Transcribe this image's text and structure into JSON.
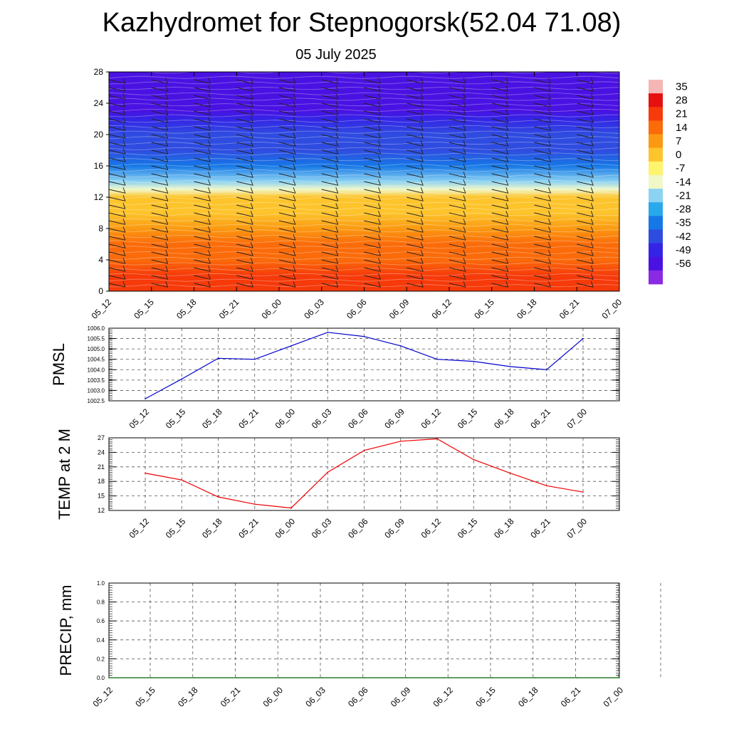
{
  "title": "Kazhydromet for Stepnogorsk(52.04 71.08)",
  "subtitle": "05 July 2025",
  "chart_data": [
    {
      "type": "heatmap",
      "title": "",
      "y_ticks": [
        "0",
        "4",
        "8",
        "12",
        "16",
        "20",
        "24",
        "28"
      ],
      "ylim": [
        0,
        28
      ],
      "x": [
        "05_12",
        "05_15",
        "05_18",
        "05_21",
        "06_00",
        "06_03",
        "06_06",
        "06_09",
        "06_12",
        "06_15",
        "06_18",
        "06_21",
        "07_00"
      ],
      "colorbar_labels": [
        "35",
        "28",
        "21",
        "14",
        "7",
        "0",
        "-7",
        "-14",
        "-21",
        "-28",
        "-35",
        "-42",
        "-49",
        "-56"
      ],
      "colorbar_colors": [
        "#f6b6b6",
        "#e61010",
        "#f63a0a",
        "#fb6b0a",
        "#fb9a12",
        "#fdc42c",
        "#fef46e",
        "#f0f8c8",
        "#8cd2f2",
        "#29a8ec",
        "#1678e6",
        "#2f4ce0",
        "#3424e6",
        "#4a12e2",
        "#8a2ae2"
      ],
      "profile": [
        {
          "level": 0,
          "value": 26
        },
        {
          "level": 2,
          "value": 24
        },
        {
          "level": 4,
          "value": 19
        },
        {
          "level": 6,
          "value": 14
        },
        {
          "level": 8,
          "value": 10
        },
        {
          "level": 10,
          "value": 6
        },
        {
          "level": 12,
          "value": 1
        },
        {
          "level": 13,
          "value": -12
        },
        {
          "level": 14,
          "value": -20
        },
        {
          "level": 16,
          "value": -30
        },
        {
          "level": 18,
          "value": -36
        },
        {
          "level": 20,
          "value": -42
        },
        {
          "level": 22,
          "value": -48
        },
        {
          "level": 23,
          "value": -56
        },
        {
          "level": 25,
          "value": -52
        },
        {
          "level": 27,
          "value": -50
        },
        {
          "level": 28,
          "value": -52
        }
      ],
      "wind_levels": [
        1,
        2,
        3,
        4,
        5,
        6,
        7,
        8,
        9,
        10,
        11,
        12,
        13,
        14,
        15,
        16,
        17,
        18,
        19,
        20,
        21,
        22,
        23,
        24,
        25,
        26,
        27
      ]
    },
    {
      "type": "line",
      "ylabel": "PMSL",
      "ylim": [
        1002.5,
        1006.0
      ],
      "y_ticks": [
        "1002.5",
        "1003.0",
        "1003.5",
        "1004.0",
        "1004.5",
        "1005.0",
        "1005.5",
        "1006.0"
      ],
      "x": [
        "05_12",
        "05_15",
        "05_18",
        "05_21",
        "06_00",
        "06_03",
        "06_06",
        "06_09",
        "06_12",
        "06_15",
        "06_18",
        "06_21",
        "07_00"
      ],
      "values": [
        1002.6,
        1003.55,
        1004.55,
        1004.5,
        1005.15,
        1005.8,
        1005.6,
        1005.15,
        1004.5,
        1004.4,
        1004.15,
        1004.0,
        1005.5
      ],
      "color": "#0000cc"
    },
    {
      "type": "line",
      "ylabel": "TEMP at 2 M",
      "ylim": [
        12,
        27
      ],
      "y_ticks": [
        "12",
        "15",
        "18",
        "21",
        "24",
        "27"
      ],
      "x": [
        "05_12",
        "05_15",
        "05_18",
        "05_21",
        "06_00",
        "06_03",
        "06_06",
        "06_09",
        "06_12",
        "06_15",
        "06_18",
        "06_21",
        "07_00"
      ],
      "values": [
        19.7,
        18.3,
        14.8,
        13.3,
        12.5,
        19.9,
        24.4,
        26.3,
        26.8,
        22.5,
        19.7,
        17.1,
        15.8
      ],
      "color": "#ee0000"
    },
    {
      "type": "line",
      "ylabel": "PRECIP, mm",
      "ylim": [
        0.0,
        1.0
      ],
      "y_ticks": [
        "0.0",
        "0.2",
        "0.4",
        "0.6",
        "0.8",
        "1.0"
      ],
      "x": [
        "05_12",
        "05_15",
        "05_18",
        "05_21",
        "06_00",
        "06_03",
        "06_06",
        "06_09",
        "06_12",
        "06_15",
        "06_18",
        "06_21",
        "07_00"
      ],
      "values": [
        0,
        0,
        0,
        0,
        0,
        0,
        0,
        0,
        0,
        0,
        0,
        0,
        0
      ],
      "color": "#006400"
    }
  ]
}
